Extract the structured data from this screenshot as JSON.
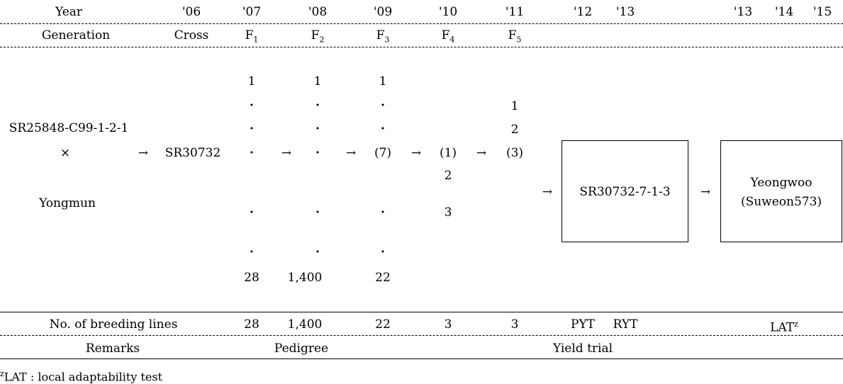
{
  "header": {
    "year_label": "Year",
    "years": [
      "'06",
      "'07",
      "'08",
      "'09",
      "'10",
      "'11",
      "'12",
      "'13",
      "'13",
      "'14",
      "'15"
    ],
    "generation_label": "Generation",
    "cross_label": "Cross",
    "generations": [
      {
        "base": "F",
        "sub": "1"
      },
      {
        "base": "F",
        "sub": "2"
      },
      {
        "base": "F",
        "sub": "3"
      },
      {
        "base": "F",
        "sub": "4"
      },
      {
        "base": "F",
        "sub": "5"
      }
    ]
  },
  "parents": {
    "female": "SR25848-C99-1-2-1",
    "cross_symbol": "×",
    "male": "Yongmun"
  },
  "cross_line": "SR30732",
  "arrow": "→",
  "dot": "·",
  "columns": {
    "f1": {
      "first": "1",
      "last": "28"
    },
    "f2": {
      "first": "1",
      "last": "1,400"
    },
    "f3": {
      "first": "1",
      "selected": "(7)",
      "last": "22"
    },
    "f4": {
      "selected": "(1)",
      "second": "2",
      "third": "3"
    },
    "f5": {
      "first": "1",
      "second": "2",
      "selected": "(3)"
    }
  },
  "selected_line": "SR30732-7-1-3",
  "cultivar": {
    "name": "Yeongwoo",
    "alt_name": "(Suweon573)"
  },
  "breeding_lines": {
    "label": "No. of breeding lines",
    "values": [
      "28",
      "1,400",
      "22",
      "3",
      "3"
    ],
    "pyt": "PYT",
    "ryt": "RYT",
    "lat": "LAT",
    "lat_sup": "z"
  },
  "remarks": {
    "label": "Remarks",
    "pedigree": "Pedigree",
    "yield_trial": "Yield trial"
  },
  "footnote": {
    "sup": "z",
    "text": "LAT : local adaptability test"
  }
}
